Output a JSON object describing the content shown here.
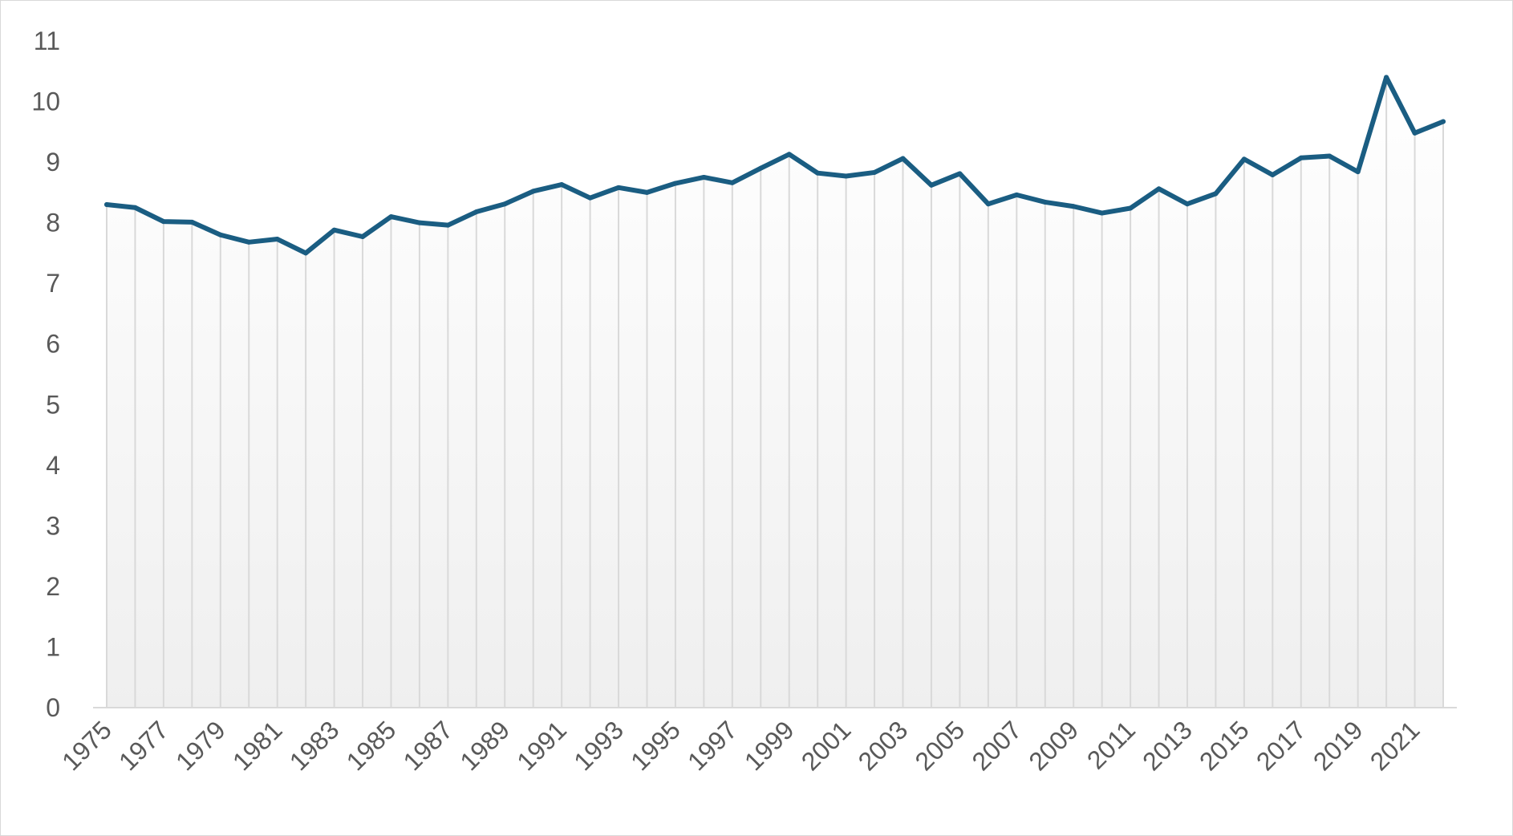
{
  "chart_data": {
    "type": "area",
    "title": "",
    "xlabel": "",
    "ylabel": "",
    "x": [
      1975,
      1976,
      1977,
      1978,
      1979,
      1980,
      1981,
      1982,
      1983,
      1984,
      1985,
      1986,
      1987,
      1988,
      1989,
      1990,
      1991,
      1992,
      1993,
      1994,
      1995,
      1996,
      1997,
      1998,
      1999,
      2000,
      2001,
      2002,
      2003,
      2004,
      2005,
      2006,
      2007,
      2008,
      2009,
      2010,
      2011,
      2012,
      2013,
      2014,
      2015,
      2016,
      2017,
      2018,
      2019,
      2020,
      2021,
      2022
    ],
    "x_tick_labels": [
      "1975",
      "1977",
      "1979",
      "1981",
      "1983",
      "1985",
      "1987",
      "1989",
      "1991",
      "1993",
      "1995",
      "1997",
      "1999",
      "2001",
      "2003",
      "2005",
      "2007",
      "2009",
      "2011",
      "2013",
      "2015",
      "2017",
      "2019",
      "2021"
    ],
    "series": [
      {
        "values": [
          8.3,
          8.25,
          8.02,
          8.01,
          7.8,
          7.68,
          7.73,
          7.5,
          7.88,
          7.77,
          8.1,
          8.0,
          7.96,
          8.18,
          8.31,
          8.52,
          8.63,
          8.41,
          8.58,
          8.5,
          8.65,
          8.75,
          8.66,
          8.9,
          9.13,
          8.82,
          8.77,
          8.83,
          9.06,
          8.62,
          8.81,
          8.31,
          8.46,
          8.34,
          8.27,
          8.16,
          8.24,
          8.56,
          8.31,
          8.48,
          9.05,
          8.79,
          9.07,
          9.1,
          8.84,
          10.4,
          9.48,
          9.67
        ]
      }
    ],
    "ylim": [
      0,
      11
    ],
    "y_ticks": [
      0,
      1,
      2,
      3,
      4,
      5,
      6,
      7,
      8,
      9,
      10,
      11
    ],
    "grid": "vertical",
    "legend": "none",
    "colors": {
      "line": "#1a5d82",
      "grid": "#d9d9d9",
      "fill_top": "#ffffff",
      "fill_bottom": "#efefef",
      "axis_text": "#595959"
    }
  }
}
